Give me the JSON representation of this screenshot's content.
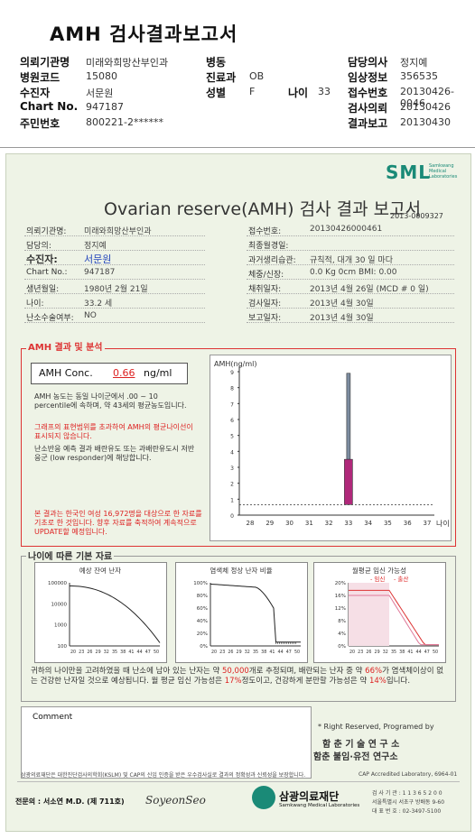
{
  "header": {
    "title": "AMH 검사결과보고서",
    "rows": [
      [
        {
          "l": "의뢰기관명",
          "v": "미래와희망산부인과"
        },
        {
          "l": "병동",
          "v": ""
        },
        {
          "l": "담당의사",
          "v": "정지예"
        }
      ],
      [
        {
          "l": "병원코드",
          "v": "15080"
        },
        {
          "l": "진료과",
          "v": "OB"
        },
        {
          "l": "임상정보",
          "v": "356535"
        }
      ],
      [
        {
          "l": "수진자",
          "v": "서문원"
        },
        {
          "l": "성별",
          "v": "F"
        },
        {
          "l": "접수번호",
          "v": "20130426-0046"
        }
      ],
      [
        {
          "l": "Chart No.",
          "v": "947187"
        },
        {
          "l": "",
          "v": ""
        },
        {
          "l": "검사의뢰",
          "v": "20130426"
        }
      ],
      [
        {
          "l": "주민번호",
          "v": "800221-2******"
        },
        {
          "l": "",
          "v": ""
        },
        {
          "l": "결과보고",
          "v": "20130430"
        }
      ]
    ],
    "age_label": "나이",
    "age_value": "33"
  },
  "report": {
    "brand": "SML",
    "brand_sub1": "Samkwang",
    "brand_sub2": "Medical",
    "brand_sub3": "Laboratories",
    "title": "Ovarian reserve(AMH) 검사 결과 보고서",
    "number": "2013-0009327",
    "left_info": [
      {
        "l": "의뢰기관명:",
        "v": "미래와희망산부인과"
      },
      {
        "l": "담당의:",
        "v": "정지예"
      },
      {
        "l": "수진자:",
        "v": "서문원"
      },
      {
        "l": "Chart No.:",
        "v": "947187"
      },
      {
        "l": "생년월일:",
        "v": "1980년 2월 21일"
      },
      {
        "l": "나이:",
        "v": "33.2 세"
      },
      {
        "l": "난소수술여부:",
        "v": "NO"
      }
    ],
    "right_info": [
      {
        "l": "접수번호:",
        "v": "20130426000461"
      },
      {
        "l": "최종월경일:",
        "v": ""
      },
      {
        "l": "과거생리습관:",
        "v": "규칙적, 대개   30 일 마다"
      },
      {
        "l": "체중/신장:",
        "v": "0.0 Kg      0cm    BMI:   0.00"
      },
      {
        "l": "채취일자:",
        "v": "2013년 4월 26일   (MCD # 0 일)"
      },
      {
        "l": "검사일자:",
        "v": "2013년 4월 30일"
      },
      {
        "l": "보고일자:",
        "v": "2013년 4월 30일"
      }
    ]
  },
  "amh_section": {
    "title": "AMH 결과 및 분석",
    "conc_label": "AMH Conc.",
    "conc_value": "0.66",
    "conc_unit": "ng/ml",
    "para1": "AMH 농도는 동일 나이군에서 .00 ~ 10 percentile에 속하며, 약 43세의 평균농도입니다.",
    "para2": "그래프의 표현범위를 초과하여 AMH의 평균나이선이 표시되지 않습니다.",
    "para3": "난소반응 예측 결과 배란유도 또는 과배란유도시 저반응군 (low responder)에 해당합니다.",
    "para4": "본 결과는 한국인 여성 16,972명을 대상으로 한 자료를 기초로 한 것입니다. 향후 자료를 축적하여 계속적으로 UPDATE할 예정입니다."
  },
  "chart_data": [
    {
      "type": "bar",
      "title": "",
      "ylabel": "AMH(ng/ml)",
      "xlabel": "나이",
      "categories": [
        "28",
        "29",
        "30",
        "31",
        "32",
        "33",
        "34",
        "35",
        "36",
        "37"
      ],
      "ylim": [
        0,
        9
      ],
      "yticks": [
        "0",
        "1",
        "2",
        "3",
        "4",
        "5",
        "6",
        "7",
        "8",
        "9"
      ],
      "series": [
        {
          "name": "",
          "category": "33",
          "low": 3.5,
          "high": 8.9,
          "color": "#7c8ca0"
        },
        {
          "name": "",
          "category": "33",
          "low": 0.66,
          "high": 3.5,
          "color": "#b0287a"
        }
      ],
      "reference_line": 0.66
    },
    {
      "type": "line",
      "title": "예상 잔여 난자",
      "x": [
        20,
        23,
        26,
        29,
        32,
        35,
        38,
        41,
        44,
        47,
        50
      ],
      "y_ticks": [
        "100000",
        "10000",
        "1000",
        "100"
      ],
      "xlabel": "",
      "ylabel": ""
    },
    {
      "type": "line",
      "title": "염색체 정상 난자 비율",
      "x": [
        20,
        23,
        26,
        29,
        32,
        35,
        38,
        41,
        44,
        47,
        50
      ],
      "y_ticks": [
        "100%",
        "80%",
        "60%",
        "40%",
        "20%",
        "0%"
      ],
      "xlabel": "",
      "ylabel": ""
    },
    {
      "type": "line",
      "title": "월평균 임신 가능성",
      "legend": [
        "임신",
        "출산"
      ],
      "x": [
        20,
        23,
        26,
        29,
        32,
        35,
        38,
        41,
        44,
        47,
        50
      ],
      "y_ticks": [
        "20%",
        "16%",
        "12%",
        "8%",
        "4%",
        "0%"
      ],
      "xlabel": "",
      "ylabel": ""
    }
  ],
  "age_section": {
    "title": "나이에 따른 기본 자료",
    "summary1": "귀하의 나이만을 고려하였을 때 난소에 남아 있는 난자는 약",
    "eggs": "50,000",
    "summary2": "개로 추정되며, 배란되는 난자 중 약",
    "pct": "66%",
    "summary3": "가 염색체이상이 없는 건강한 난자일 것으로 예상됩니다. 월 평균 임신 가능성은",
    "pregnancy": "17%",
    "summary4": "정도이고, 건강하게 분만할 가능성은 약",
    "birth": "14%",
    "summary5": "입니다."
  },
  "comment": {
    "label": "Comment",
    "rights": "* Right Reserved, Programed by",
    "inst1": "함 춘 기 술 연 구 소",
    "inst2": "함춘 불임·유전 연구소"
  },
  "footer": {
    "note": "삼광의료재단은 대한진단검사의학회(KSLM) 및 CAP의 신임 인증을 받은 우수검사실로 결과의 정확성과 신뢰성을 보장합니다.",
    "cap": "CAP Accredited Laboratory, 6964-01",
    "doctor": "전문의 : 서소연 M.D. (제 711호)",
    "signature": "SoyeonSeo",
    "foundation": "삼광의료재단",
    "foundation_en": "Samkwang Medical Laboratories",
    "license": "검 사 기 관 : 1 1 3 6 5 2 0 0",
    "address": "서울특별시 서초구 방배동 9-60",
    "phone": "대 표 번 호 : 02-3497-5100"
  }
}
